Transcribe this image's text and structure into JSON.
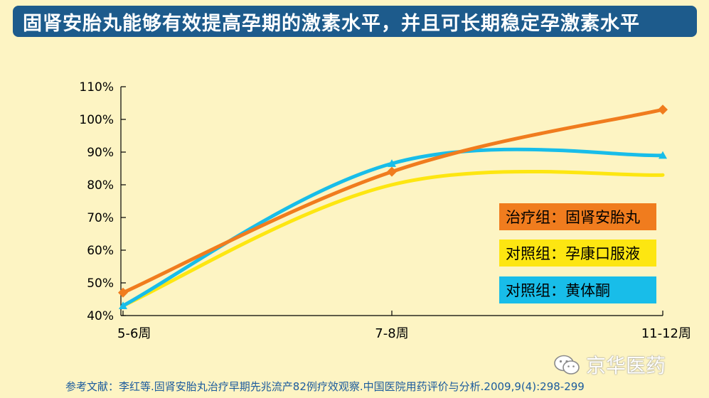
{
  "title": "固肾安胎丸能够有效提高孕期的激素水平，并且可长期稳定孕激素水平",
  "chart_data": {
    "type": "line",
    "categories": [
      "5-6周",
      "7-8周",
      "11-12周"
    ],
    "yticks": [
      "40%",
      "50%",
      "60%",
      "70%",
      "80%",
      "90%",
      "100%",
      "110%"
    ],
    "ylim": [
      40,
      110
    ],
    "series": [
      {
        "name": "治疗组：固肾安胎丸",
        "values": [
          47,
          84,
          103
        ],
        "color": "#f07c1e",
        "marker": "diamond"
      },
      {
        "name": "对照组：孕康口服液",
        "values": [
          43,
          80,
          83
        ],
        "color": "#fde611",
        "marker": "none"
      },
      {
        "name": "对照组：黄体酮",
        "values": [
          43,
          86.5,
          89
        ],
        "color": "#18bde9",
        "marker": "triangle"
      }
    ]
  },
  "reference": "参考文献：李红等.固肾安胎丸治疗早期先兆流产82例疗效观察.中国医院用药评价与分析.2009,9(4):298-299",
  "watermark": "京华医药"
}
